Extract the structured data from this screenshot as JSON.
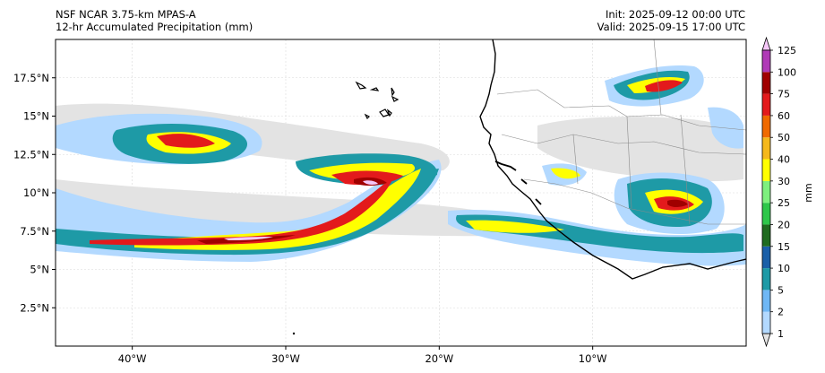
{
  "header": {
    "model": "NSF NCAR 3.75-km MPAS-A",
    "field": "12-hr Accumulated Precipitation (mm)",
    "init": "Init: 2025-09-12 00:00 UTC",
    "valid": "Valid: 2025-09-15 17:00 UTC"
  },
  "map": {
    "lon_range": [
      -45,
      0
    ],
    "lat_range": [
      0,
      20
    ],
    "x_ticks": [
      {
        "value": -40,
        "label": "40°W"
      },
      {
        "value": -30,
        "label": "30°W"
      },
      {
        "value": -20,
        "label": "20°W"
      },
      {
        "value": -10,
        "label": "10°W"
      }
    ],
    "y_ticks": [
      {
        "value": 17.5,
        "label": "17.5°N"
      },
      {
        "value": 15,
        "label": "15°N"
      },
      {
        "value": 12.5,
        "label": "12.5°N"
      },
      {
        "value": 10,
        "label": "10°N"
      },
      {
        "value": 7.5,
        "label": "7.5°N"
      },
      {
        "value": 5,
        "label": "5°N"
      },
      {
        "value": 2.5,
        "label": "2.5°N"
      }
    ]
  },
  "colorbar": {
    "unit": "mm",
    "levels": [
      "1",
      "2",
      "5",
      "10",
      "15",
      "20",
      "25",
      "30",
      "40",
      "50",
      "60",
      "75",
      "100",
      "125"
    ],
    "colors": [
      "#e3e3e3",
      "#b3d9ff",
      "#6fb7f5",
      "#1e9aa6",
      "#1a5fa8",
      "#1f6b1f",
      "#2ec74a",
      "#7ef07e",
      "#ffff00",
      "#f5b81c",
      "#f06a00",
      "#e31a1c",
      "#a00000",
      "#b03ab7",
      "#f4c6f7"
    ]
  },
  "colors": {
    "coast": "#000000",
    "border": "#8a8a8a",
    "grid": "#d9d9d9"
  }
}
